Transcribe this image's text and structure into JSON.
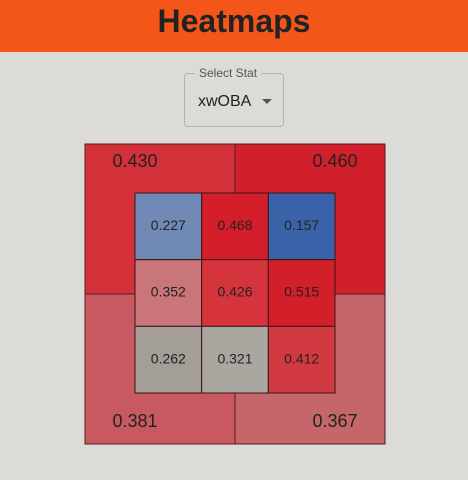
{
  "header": {
    "title": "Heatmaps"
  },
  "select": {
    "label": "Select Stat",
    "value": "xwOBA"
  },
  "zone": {
    "outer": [
      {
        "label": "0.430",
        "color": "#d2313a"
      },
      {
        "label": "0.460",
        "color": "#d11f2b"
      },
      {
        "label": "0.381",
        "color": "#c95960"
      },
      {
        "label": "0.367",
        "color": "#c4666a"
      }
    ],
    "inner": [
      [
        {
          "label": "0.227",
          "color": "#7089b5"
        },
        {
          "label": "0.468",
          "color": "#d51e2b"
        },
        {
          "label": "0.157",
          "color": "#3a62a8"
        }
      ],
      [
        {
          "label": "0.352",
          "color": "#c97579"
        },
        {
          "label": "0.426",
          "color": "#d6343d"
        },
        {
          "label": "0.515",
          "color": "#d21f29"
        }
      ],
      [
        {
          "label": "0.262",
          "color": "#a39e97"
        },
        {
          "label": "0.321",
          "color": "#aaa7a0"
        },
        {
          "label": "0.412",
          "color": "#d23a42"
        }
      ]
    ]
  }
}
